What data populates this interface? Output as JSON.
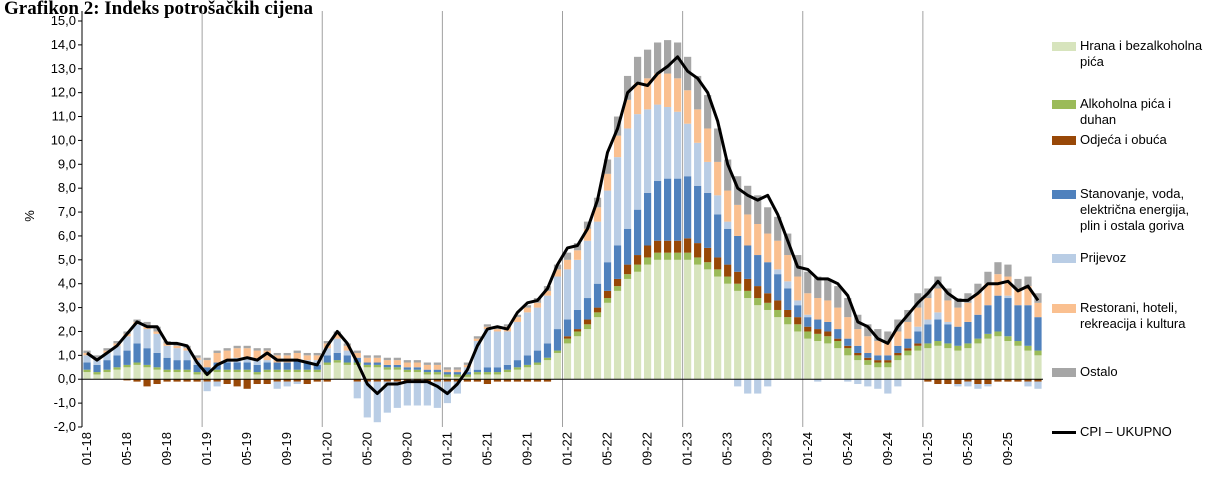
{
  "chart_data": {
    "type": "bar",
    "title": "Grafikon 2: Indeks potrošačkih cijena",
    "y_label": "%",
    "categories": [
      "01-18",
      null,
      null,
      null,
      "05-18",
      null,
      null,
      null,
      "09-18",
      null,
      null,
      null,
      "01-19",
      null,
      null,
      null,
      "05-19",
      null,
      null,
      null,
      "09-19",
      null,
      null,
      null,
      "01-20",
      null,
      null,
      null,
      "05-20",
      null,
      null,
      null,
      "09-20",
      null,
      null,
      null,
      "01-21",
      null,
      null,
      null,
      "05-21",
      null,
      null,
      null,
      "09-21",
      null,
      null,
      null,
      "01-22",
      null,
      null,
      null,
      "05-22",
      null,
      null,
      null,
      "09-22",
      null,
      null,
      null,
      "01-23",
      null,
      null,
      null,
      "05-23",
      null,
      null,
      null,
      "09-23",
      null,
      null,
      null,
      "01-24",
      null,
      null,
      null,
      "05-24",
      null,
      null,
      null,
      "09-24",
      null,
      null,
      null,
      "01-25",
      null,
      null,
      null,
      "05-25",
      null,
      null,
      null,
      "09-25",
      null,
      null,
      null
    ],
    "ylim": [
      -2,
      15
    ],
    "yticks": [
      {
        "value": -2,
        "label": "-2,0"
      },
      {
        "value": -1,
        "label": "-1,0"
      },
      {
        "value": 0,
        "label": "0,0"
      },
      {
        "value": 1,
        "label": "1,0"
      },
      {
        "value": 2,
        "label": "2,0"
      },
      {
        "value": 3,
        "label": "3,0"
      },
      {
        "value": 4,
        "label": "4,0"
      },
      {
        "value": 5,
        "label": "5,0"
      },
      {
        "value": 6,
        "label": "6,0"
      },
      {
        "value": 7,
        "label": "7,0"
      },
      {
        "value": 8,
        "label": "8,0"
      },
      {
        "value": 9,
        "label": "9,0"
      },
      {
        "value": 10,
        "label": "10,0"
      },
      {
        "value": 11,
        "label": "11,0"
      },
      {
        "value": 12,
        "label": "12,0"
      },
      {
        "value": 13,
        "label": "13,0"
      },
      {
        "value": 14,
        "label": "14,0"
      },
      {
        "value": 15,
        "label": "15,0"
      }
    ],
    "series": [
      {
        "name": "Hrana i bezalkoholna pića",
        "color": "#d7e4bd",
        "values": [
          0.3,
          0.2,
          0.3,
          0.4,
          0.5,
          0.6,
          0.5,
          0.4,
          0.3,
          0.3,
          0.3,
          0.2,
          0.2,
          0.3,
          0.3,
          0.3,
          0.3,
          0.2,
          0.3,
          0.3,
          0.3,
          0.3,
          0.3,
          0.3,
          0.6,
          0.7,
          0.6,
          0.6,
          0.5,
          0.5,
          0.4,
          0.4,
          0.3,
          0.3,
          0.2,
          0.2,
          0.1,
          0.1,
          0.1,
          0.2,
          0.2,
          0.2,
          0.3,
          0.4,
          0.5,
          0.6,
          0.8,
          1.1,
          1.5,
          1.8,
          2.1,
          2.6,
          3.2,
          3.7,
          4.2,
          4.5,
          4.8,
          5.0,
          5.0,
          5.0,
          5.0,
          4.8,
          4.6,
          4.3,
          4.0,
          3.7,
          3.4,
          3.1,
          2.9,
          2.6,
          2.3,
          2.0,
          1.7,
          1.6,
          1.5,
          1.3,
          1.0,
          0.8,
          0.6,
          0.5,
          0.5,
          0.8,
          1.0,
          1.2,
          1.3,
          1.4,
          1.3,
          1.2,
          1.3,
          1.5,
          1.7,
          1.8,
          1.6,
          1.4,
          1.2,
          1.0
        ]
      },
      {
        "name": "Alkoholna pića i duhan",
        "color": "#9bbb59",
        "values": [
          0.1,
          0.1,
          0.1,
          0.1,
          0.1,
          0.1,
          0.1,
          0.1,
          0.1,
          0.1,
          0.1,
          0.1,
          0.1,
          0.1,
          0.1,
          0.1,
          0.1,
          0.1,
          0.1,
          0.1,
          0.1,
          0.1,
          0.1,
          0.1,
          0.1,
          0.1,
          0.1,
          0.1,
          0.1,
          0.1,
          0.1,
          0.1,
          0.1,
          0.1,
          0.1,
          0.1,
          0.1,
          0.1,
          0.1,
          0.1,
          0.1,
          0.1,
          0.1,
          0.1,
          0.1,
          0.1,
          0.1,
          0.1,
          0.2,
          0.2,
          0.2,
          0.2,
          0.2,
          0.2,
          0.2,
          0.3,
          0.3,
          0.3,
          0.3,
          0.3,
          0.3,
          0.3,
          0.3,
          0.3,
          0.3,
          0.3,
          0.3,
          0.3,
          0.3,
          0.3,
          0.3,
          0.3,
          0.3,
          0.3,
          0.3,
          0.3,
          0.3,
          0.2,
          0.2,
          0.2,
          0.2,
          0.2,
          0.2,
          0.2,
          0.2,
          0.2,
          0.2,
          0.2,
          0.2,
          0.2,
          0.2,
          0.2,
          0.2,
          0.2,
          0.2,
          0.2
        ]
      },
      {
        "name": "Odjeća i obuća",
        "color": "#984807",
        "values": [
          0,
          0,
          0,
          0,
          -0.05,
          -0.1,
          -0.3,
          -0.2,
          -0.1,
          -0.1,
          -0.1,
          -0.1,
          -0.1,
          -0.1,
          -0.2,
          -0.3,
          -0.4,
          -0.2,
          -0.2,
          -0.1,
          -0.1,
          -0.1,
          -0.2,
          -0.1,
          -0.1,
          0,
          0,
          -0.1,
          -0.1,
          -0.1,
          -0.1,
          -0.1,
          -0.1,
          -0.1,
          -0.1,
          -0.1,
          -0.1,
          -0.1,
          -0.1,
          -0.1,
          -0.2,
          -0.1,
          -0.1,
          -0.1,
          -0.1,
          -0.1,
          -0.1,
          0,
          0.1,
          0.1,
          0.2,
          0.2,
          0.3,
          0.3,
          0.4,
          0.4,
          0.5,
          0.5,
          0.5,
          0.5,
          0.6,
          0.6,
          0.6,
          0.5,
          0.5,
          0.5,
          0.5,
          0.5,
          0.4,
          0.4,
          0.3,
          0.3,
          0.2,
          0.2,
          0.2,
          0.1,
          0.1,
          0.1,
          0.1,
          0.1,
          0.1,
          0.1,
          0.1,
          0.1,
          -0.1,
          -0.2,
          -0.2,
          -0.2,
          -0.1,
          -0.2,
          -0.2,
          -0.1,
          -0.1,
          -0.1,
          -0.1,
          -0.1
        ]
      },
      {
        "name": "Stanovanje, voda, električna energija, plin i ostala goriva",
        "color": "#4f81bd",
        "values": [
          0.3,
          0.3,
          0.4,
          0.5,
          0.6,
          0.8,
          0.7,
          0.6,
          0.5,
          0.4,
          0.4,
          0.3,
          0.2,
          0.3,
          0.3,
          0.3,
          0.3,
          0.3,
          0.3,
          0.3,
          0.3,
          0.4,
          0.3,
          0.2,
          0.3,
          0.3,
          0.3,
          0.2,
          0.1,
          0.1,
          0.1,
          0.1,
          0.1,
          0.1,
          0.1,
          0.1,
          0.1,
          0.1,
          0.1,
          0.1,
          0.2,
          0.2,
          0.2,
          0.3,
          0.4,
          0.5,
          0.6,
          0.9,
          0.7,
          0.8,
          0.9,
          1.0,
          1.2,
          1.4,
          1.5,
          1.9,
          2.2,
          2.5,
          2.6,
          2.6,
          2.6,
          2.4,
          2.3,
          1.8,
          1.5,
          1.5,
          1.4,
          1.3,
          1.3,
          1.1,
          0.9,
          0.5,
          0.4,
          0.4,
          0.4,
          0.4,
          0.3,
          0.3,
          0.2,
          0.2,
          0.2,
          0.3,
          0.4,
          0.5,
          0.8,
          0.9,
          0.8,
          0.8,
          0.9,
          1.0,
          1.2,
          1.5,
          1.6,
          1.5,
          1.7,
          1.4
        ]
      },
      {
        "name": "Prijevoz",
        "color": "#b9cde5",
        "values": [
          0.3,
          0.2,
          0.3,
          0.4,
          0.6,
          0.8,
          0.8,
          0.8,
          0.5,
          0.5,
          0.4,
          0.2,
          -0.4,
          -0.2,
          0.1,
          0.2,
          0.2,
          0.2,
          0.1,
          -0.3,
          -0.2,
          -0.1,
          0.1,
          0.2,
          0.3,
          0.6,
          0.2,
          -0.7,
          -1.5,
          -1.7,
          -1.3,
          -1.1,
          -1.0,
          -1.0,
          -1.0,
          -1.1,
          -0.9,
          -0.5,
          0.2,
          1.2,
          1.6,
          1.5,
          1.4,
          1.6,
          1.8,
          1.8,
          2.0,
          2.2,
          2.1,
          2.1,
          2.4,
          2.6,
          3.0,
          3.7,
          4.2,
          4.0,
          3.5,
          3.2,
          3.0,
          2.8,
          2.2,
          1.8,
          1.3,
          0.8,
          0.3,
          -0.3,
          -0.6,
          -0.6,
          -0.3,
          0.2,
          0.3,
          0.2,
          0.1,
          -0.1,
          0,
          0,
          -0.1,
          -0.2,
          -0.3,
          -0.4,
          -0.6,
          -0.3,
          0,
          0.2,
          0.2,
          0.3,
          0.1,
          -0.1,
          -0.2,
          -0.2,
          -0.1,
          0,
          0.1,
          0,
          -0.2,
          -0.3
        ]
      },
      {
        "name": "Restorani, hoteli, rekreacija i kultura",
        "color": "#fac090",
        "values": [
          0.1,
          0.1,
          0.1,
          0.1,
          0.1,
          0.1,
          0.1,
          0.1,
          0.1,
          0.1,
          0.1,
          0.1,
          0.3,
          0.4,
          0.4,
          0.4,
          0.4,
          0.4,
          0.4,
          0.3,
          0.3,
          0.3,
          0.2,
          0.2,
          0.2,
          0.2,
          0.2,
          0.2,
          0.2,
          0.2,
          0.2,
          0.2,
          0.2,
          0.2,
          0.2,
          0.2,
          0.1,
          0.1,
          0.1,
          0.1,
          0.1,
          0.1,
          0.2,
          0.2,
          0.2,
          0.2,
          0.2,
          0.3,
          0.4,
          0.4,
          0.5,
          0.6,
          0.7,
          0.9,
          1.2,
          1.3,
          1.3,
          1.3,
          1.4,
          1.4,
          1.4,
          1.4,
          1.4,
          1.4,
          1.3,
          1.3,
          1.3,
          1.3,
          1.2,
          1.2,
          1.1,
          1.0,
          0.9,
          0.9,
          0.9,
          0.9,
          0.9,
          0.7,
          0.7,
          0.6,
          0.6,
          0.6,
          0.7,
          0.8,
          0.9,
          1.0,
          0.9,
          0.8,
          0.8,
          0.9,
          0.9,
          0.9,
          0.8,
          0.7,
          0.8,
          0.6
        ]
      },
      {
        "name": "Ostalo",
        "color": "#a6a6a6",
        "values": [
          0.1,
          0.1,
          0.1,
          0.1,
          0.1,
          0.1,
          0.2,
          0.2,
          0.1,
          0.1,
          0.1,
          0.1,
          0.1,
          0.1,
          0.1,
          0.1,
          0.1,
          0.1,
          0.1,
          0.1,
          0.1,
          0.1,
          0.1,
          0.1,
          0.1,
          0.1,
          0.1,
          0.1,
          0.1,
          0.1,
          0.1,
          0.1,
          0.1,
          0.1,
          0.1,
          0.1,
          0.1,
          0.1,
          0.1,
          0.1,
          0.1,
          0.1,
          0.1,
          0.1,
          0.1,
          0.2,
          0.2,
          0.2,
          0.3,
          0.3,
          0.3,
          0.4,
          0.6,
          0.8,
          1.0,
          1.1,
          1.2,
          1.3,
          1.4,
          1.5,
          1.4,
          1.4,
          1.4,
          1.4,
          1.3,
          1.2,
          1.2,
          1.2,
          1.1,
          1.0,
          0.9,
          0.9,
          0.9,
          0.9,
          0.9,
          0.9,
          0.8,
          0.6,
          0.5,
          0.5,
          0.4,
          0.5,
          0.5,
          0.6,
          0.4,
          0.5,
          0.5,
          0.4,
          0.4,
          0.4,
          0.5,
          0.5,
          0.5,
          0.4,
          0.4,
          0.4
        ]
      },
      {
        "name": "CPI – UKUPNO",
        "color": "#000000",
        "type": "line",
        "values": [
          1.1,
          0.8,
          1.1,
          1.4,
          1.9,
          2.4,
          2.2,
          2.2,
          1.5,
          1.5,
          1.4,
          0.7,
          0.2,
          0.6,
          0.8,
          0.8,
          0.9,
          0.8,
          1.1,
          0.8,
          0.8,
          0.8,
          0.7,
          0.6,
          1.4,
          2.0,
          1.5,
          0.7,
          -0.2,
          -0.6,
          -0.2,
          -0.2,
          -0.1,
          -0.1,
          -0.1,
          -0.3,
          -0.6,
          -0.2,
          0.4,
          1.4,
          2.1,
          2.2,
          2.1,
          2.8,
          3.2,
          3.3,
          3.8,
          4.8,
          5.5,
          5.6,
          6.3,
          7.5,
          9.5,
          10.5,
          12.0,
          12.4,
          12.3,
          12.8,
          13.1,
          13.5,
          12.9,
          12.6,
          12.0,
          10.8,
          9.0,
          8.0,
          7.7,
          7.5,
          7.7,
          6.9,
          5.8,
          4.7,
          4.6,
          4.2,
          4.2,
          4.0,
          3.5,
          2.4,
          2.2,
          1.7,
          1.5,
          2.2,
          2.7,
          3.2,
          3.6,
          4.1,
          3.6,
          3.3,
          3.3,
          3.6,
          4.0,
          4.0,
          4.1,
          3.7,
          3.9,
          3.3
        ]
      }
    ]
  }
}
